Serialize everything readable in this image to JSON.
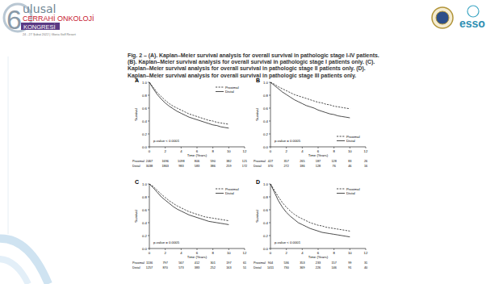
{
  "header": {
    "ordinal": "6",
    "line1": "ulusal",
    "line2": "CERRAHİ ONKOLOJİ",
    "line3": "KONGRESİ",
    "date": "24 - 27 Şubat 2022 | Gloria Golf Resort",
    "partner": "esso"
  },
  "caption": "Fig. 2 – (A). Kaplan–Meier survival analysis for overall survival in pathologic stage I-IV patients. (B). Kaplan–Meier survival analysis for overall survival in pathologic stage I patients only. (C). Kaplan–Meier survival analysis for overall survival in pathologic stage II patients only. (D). Kaplan–Meier survival analysis for overall survival in pathologic stage III patients only.",
  "chart_data": [
    {
      "type": "line",
      "label": "A",
      "x_label": "Time (Years)",
      "y_label": "Survival",
      "annotation": "p-value < 0.0001",
      "legend": "upper right",
      "xlim": [
        0,
        12
      ],
      "ylim": [
        0,
        1
      ],
      "xticks": [
        0,
        2,
        4,
        6,
        8,
        10,
        12
      ],
      "yticks": [
        {
          "value": 0,
          "label": "0.0"
        },
        {
          "value": 0.2,
          "label": "0.2"
        },
        {
          "value": 0.4,
          "label": "0.4"
        },
        {
          "value": 0.6,
          "label": "0.6"
        },
        {
          "value": 0.8,
          "label": "0.8"
        },
        {
          "value": 1,
          "label": "1.0"
        }
      ],
      "x": [
        0,
        0.5,
        1,
        1.5,
        2,
        2.5,
        3,
        3.5,
        4,
        4.5,
        5,
        5.5,
        6,
        6.5,
        7,
        7.5,
        8,
        8.5,
        9,
        9.5,
        10
      ],
      "series": [
        {
          "name": "Proximal",
          "color": "#000000",
          "line_style": "dashed",
          "values": [
            1,
            0.92,
            0.84,
            0.78,
            0.72,
            0.67,
            0.63,
            0.6,
            0.57,
            0.54,
            0.51,
            0.49,
            0.47,
            0.45,
            0.43,
            0.41,
            0.4,
            0.38,
            0.37,
            0.36,
            0.35
          ]
        },
        {
          "name": "Distal",
          "color": "#000000",
          "line_style": "solid",
          "values": [
            1,
            0.9,
            0.81,
            0.74,
            0.68,
            0.63,
            0.59,
            0.55,
            0.52,
            0.49,
            0.46,
            0.44,
            0.42,
            0.4,
            0.38,
            0.36,
            0.34,
            0.33,
            0.31,
            0.3,
            0.29
          ]
        }
      ],
      "at_risk": [
        {
          "name": "Proximal",
          "values": [
            2467,
            1696,
            1098,
            806,
            590,
            382,
            121
          ]
        },
        {
          "name": "Distal",
          "values": [
            3038,
            1863,
            983,
            583,
            386,
            259,
            172
          ]
        }
      ]
    },
    {
      "type": "line",
      "label": "B",
      "x_label": "Time (Years)",
      "y_label": "Survival",
      "annotation": "p-value = 0.0005",
      "legend": "lower right",
      "xlim": [
        0,
        12
      ],
      "ylim": [
        0,
        1
      ],
      "xticks": [
        0,
        2,
        4,
        6,
        8,
        10,
        12
      ],
      "yticks": [
        {
          "value": 0,
          "label": "0.0"
        },
        {
          "value": 0.2,
          "label": "0.2"
        },
        {
          "value": 0.4,
          "label": "0.4"
        },
        {
          "value": 0.6,
          "label": "0.6"
        },
        {
          "value": 0.8,
          "label": "0.8"
        },
        {
          "value": 1,
          "label": "1.0"
        }
      ],
      "x": [
        0,
        0.5,
        1,
        1.5,
        2,
        2.5,
        3,
        3.5,
        4,
        4.5,
        5,
        5.5,
        6,
        6.5,
        7,
        7.5,
        8,
        8.5,
        9,
        9.5,
        10
      ],
      "series": [
        {
          "name": "Proximal",
          "color": "#000000",
          "line_style": "dashed",
          "values": [
            1,
            0.97,
            0.93,
            0.9,
            0.87,
            0.84,
            0.81,
            0.79,
            0.77,
            0.75,
            0.73,
            0.71,
            0.69,
            0.68,
            0.66,
            0.65,
            0.63,
            0.62,
            0.61,
            0.6,
            0.59
          ]
        },
        {
          "name": "Distal",
          "color": "#000000",
          "line_style": "solid",
          "values": [
            1,
            0.95,
            0.9,
            0.85,
            0.81,
            0.77,
            0.73,
            0.7,
            0.67,
            0.64,
            0.62,
            0.6,
            0.57,
            0.55,
            0.53,
            0.51,
            0.5,
            0.48,
            0.47,
            0.46,
            0.45
          ]
        }
      ],
      "at_risk": [
        {
          "name": "Proximal",
          "values": [
            427,
            357,
            265,
            187,
            128,
            83,
            26
          ]
        },
        {
          "name": "Distal",
          "values": [
            370,
            272,
            186,
            128,
            76,
            46,
            16
          ]
        }
      ]
    },
    {
      "type": "line",
      "label": "C",
      "x_label": "Time (Years)",
      "y_label": "Survival",
      "annotation": "p-value = 0.0005",
      "legend": "upper right",
      "xlim": [
        0,
        12
      ],
      "ylim": [
        0,
        1
      ],
      "xticks": [
        0,
        2,
        4,
        6,
        8,
        10,
        12
      ],
      "yticks": [
        {
          "value": 0,
          "label": "0.0"
        },
        {
          "value": 0.2,
          "label": "0.2"
        },
        {
          "value": 0.4,
          "label": "0.4"
        },
        {
          "value": 0.6,
          "label": "0.6"
        },
        {
          "value": 0.8,
          "label": "0.8"
        },
        {
          "value": 1,
          "label": "1.0"
        }
      ],
      "x": [
        0,
        0.5,
        1,
        1.5,
        2,
        2.5,
        3,
        3.5,
        4,
        4.5,
        5,
        5.5,
        6,
        6.5,
        7,
        7.5,
        8,
        8.5,
        9,
        9.5,
        10
      ],
      "series": [
        {
          "name": "Proximal",
          "color": "#000000",
          "line_style": "dashed",
          "values": [
            1,
            0.96,
            0.9,
            0.84,
            0.79,
            0.74,
            0.7,
            0.66,
            0.63,
            0.6,
            0.57,
            0.55,
            0.53,
            0.51,
            0.49,
            0.48,
            0.47,
            0.46,
            0.45,
            0.44,
            0.43
          ]
        },
        {
          "name": "Distal",
          "color": "#000000",
          "line_style": "solid",
          "values": [
            1,
            0.94,
            0.87,
            0.8,
            0.75,
            0.7,
            0.65,
            0.61,
            0.58,
            0.55,
            0.52,
            0.5,
            0.48,
            0.46,
            0.44,
            0.42,
            0.41,
            0.4,
            0.39,
            0.38,
            0.37
          ]
        }
      ],
      "at_risk": [
        {
          "name": "Proximal",
          "values": [
            1136,
            797,
            567,
            412,
            301,
            197,
            61
          ]
        },
        {
          "name": "Distal",
          "values": [
            1257,
            870,
            573,
            383,
            252,
            163,
            51
          ]
        }
      ]
    },
    {
      "type": "line",
      "label": "D",
      "x_label": "Time (Years)",
      "y_label": "Survival",
      "annotation": "p-value < 0.0001",
      "legend": "upper right",
      "xlim": [
        0,
        12
      ],
      "ylim": [
        0,
        1
      ],
      "xticks": [
        0,
        2,
        4,
        6,
        8,
        10,
        12
      ],
      "yticks": [
        {
          "value": 0,
          "label": "0.0"
        },
        {
          "value": 0.2,
          "label": "0.2"
        },
        {
          "value": 0.4,
          "label": "0.4"
        },
        {
          "value": 0.6,
          "label": "0.6"
        },
        {
          "value": 0.8,
          "label": "0.8"
        },
        {
          "value": 1,
          "label": "1.0"
        }
      ],
      "x": [
        0,
        0.5,
        1,
        1.5,
        2,
        2.5,
        3,
        3.5,
        4,
        4.5,
        5,
        5.5,
        6,
        6.5,
        7,
        7.5,
        8,
        8.5,
        9,
        9.5,
        10
      ],
      "series": [
        {
          "name": "Proximal",
          "color": "#000000",
          "line_style": "dashed",
          "values": [
            1,
            0.9,
            0.8,
            0.71,
            0.64,
            0.58,
            0.53,
            0.49,
            0.46,
            0.43,
            0.4,
            0.38,
            0.36,
            0.35,
            0.33,
            0.32,
            0.31,
            0.3,
            0.29,
            0.28,
            0.27
          ]
        },
        {
          "name": "Distal",
          "color": "#000000",
          "line_style": "solid",
          "values": [
            1,
            0.87,
            0.74,
            0.64,
            0.56,
            0.5,
            0.45,
            0.4,
            0.37,
            0.34,
            0.31,
            0.29,
            0.27,
            0.25,
            0.24,
            0.23,
            0.22,
            0.21,
            0.2,
            0.19,
            0.18
          ]
        }
      ],
      "at_risk": [
        {
          "name": "Proximal",
          "values": [
            904,
            536,
            353,
            233,
            157,
            99,
            31
          ]
        },
        {
          "name": "Distal",
          "values": [
            1411,
            730,
            369,
            226,
            146,
            91,
            40
          ]
        }
      ]
    }
  ]
}
